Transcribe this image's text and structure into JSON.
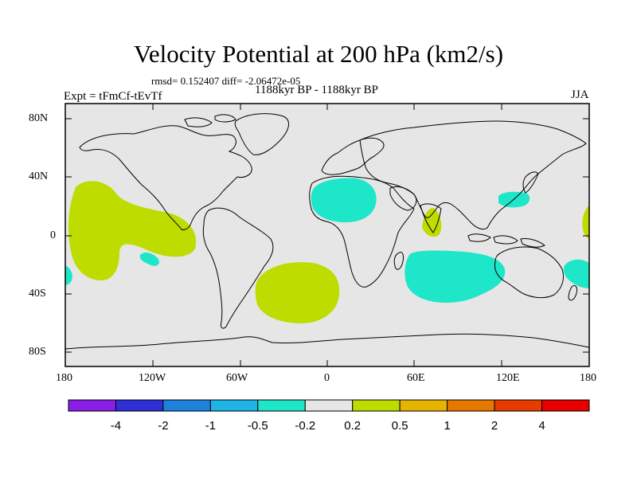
{
  "title": "Velocity Potential at 200 hPa (km2/s)",
  "stats": "rmsd= 0.152407 diff= -2.06472e-05",
  "experiment": "Expt = tFmCf-tEvTf",
  "period": "1188kyr BP - 1188kyr BP",
  "season": "JJA",
  "map": {
    "background_color": "#e6e6e6",
    "lat_ticks": [
      "80N",
      "40N",
      "0",
      "40S",
      "80S"
    ],
    "lon_ticks": [
      "180",
      "120W",
      "60W",
      "0",
      "60E",
      "120E",
      "180"
    ]
  },
  "colorbar": {
    "colors": [
      "#8a1ee6",
      "#2f2fd6",
      "#1e82dc",
      "#1eb4e6",
      "#1ee6c8",
      "#e6e6e6",
      "#bedc00",
      "#e6b400",
      "#e67800",
      "#e63c00",
      "#e60000"
    ],
    "labels": [
      "-4",
      "-2",
      "-1",
      "-0.5",
      "-0.2",
      "0.2",
      "0.5",
      "1",
      "2",
      "4"
    ]
  },
  "anomaly_colors": {
    "negative_weak": "#1ee6c8",
    "positive_weak": "#bedc00"
  }
}
